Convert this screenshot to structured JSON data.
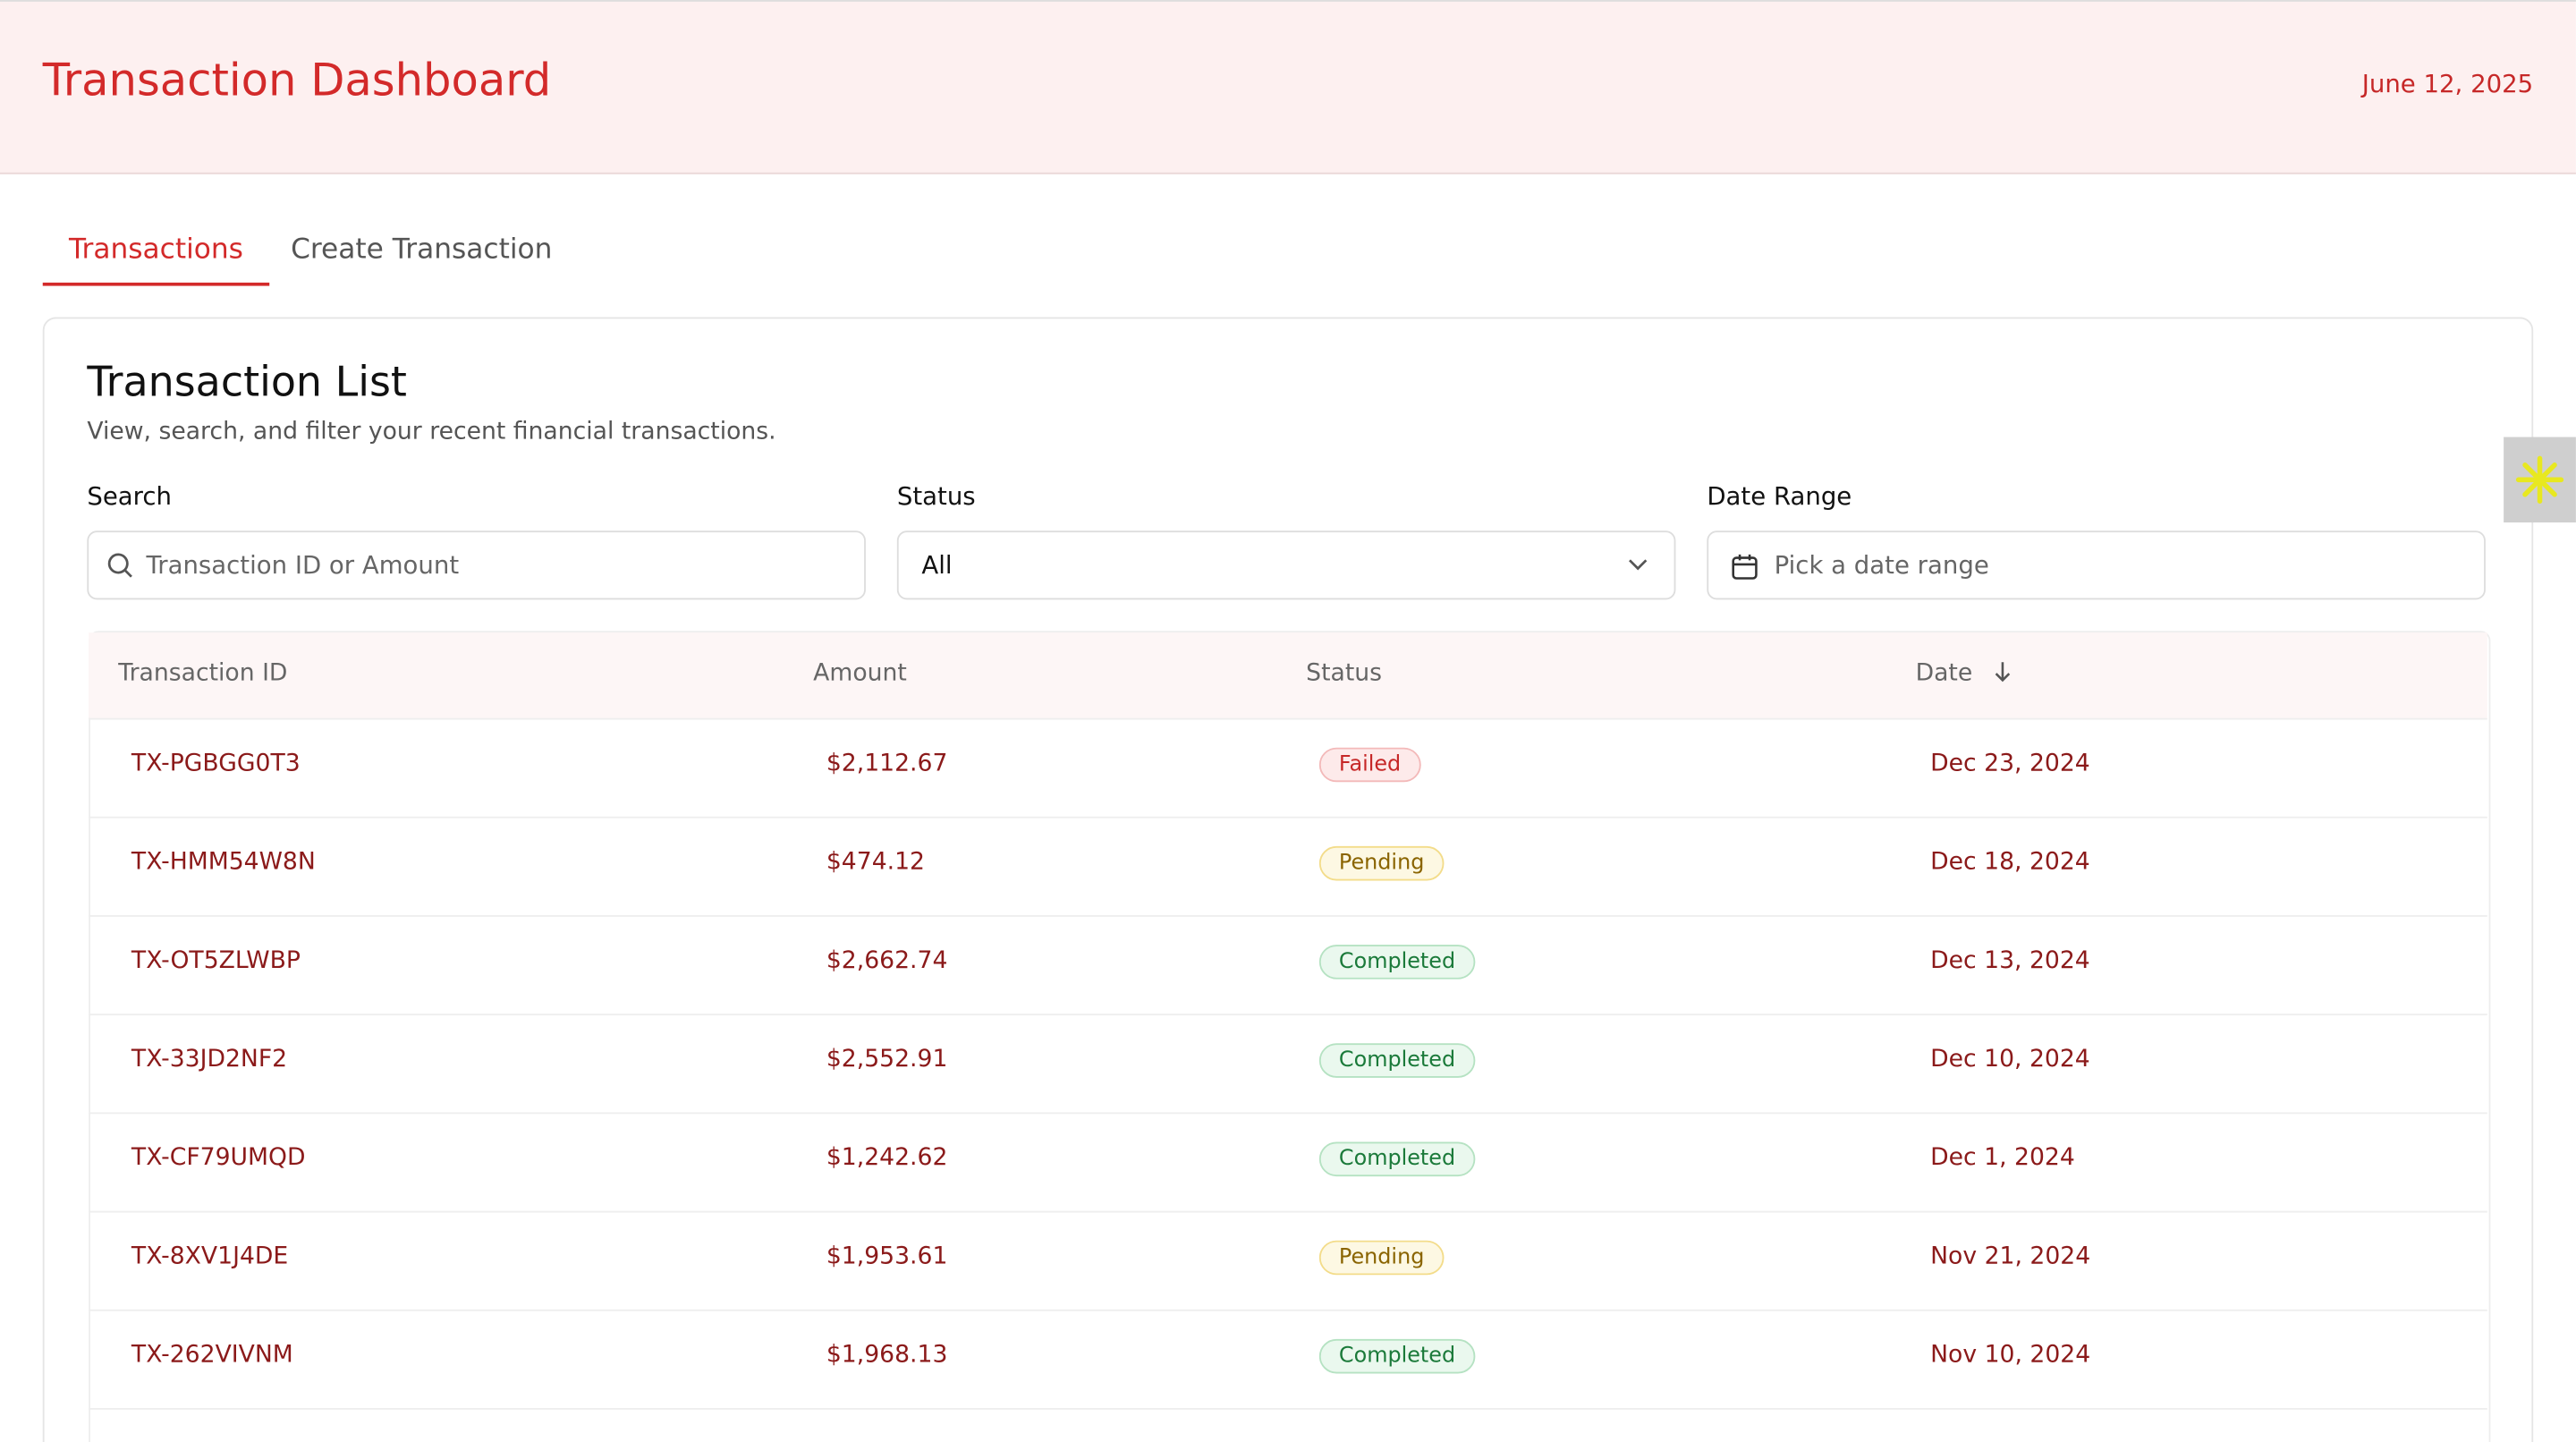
{
  "header": {
    "title": "Transaction Dashboard",
    "date": "June 12, 2025"
  },
  "tabs": [
    "Transactions",
    "Create Transaction"
  ],
  "card": {
    "title": "Transaction List",
    "subtitle": "View, search, and filter your recent financial transactions."
  },
  "filters": {
    "search_label": "Search",
    "search_placeholder": "Transaction ID or Amount",
    "status_label": "Status",
    "status_value": "All",
    "date_label": "Date Range",
    "date_placeholder": "Pick a date range"
  },
  "table": {
    "headers": [
      "Transaction ID",
      "Amount",
      "Status",
      "Date"
    ],
    "rows": [
      [
        "TX-PGBGG0T3",
        "$2,112.67",
        "Failed",
        "Dec 23, 2024"
      ],
      [
        "TX-HMM54W8N",
        "$474.12",
        "Pending",
        "Dec 18, 2024"
      ],
      [
        "TX-OT5ZLWBP",
        "$2,662.74",
        "Completed",
        "Dec 13, 2024"
      ],
      [
        "TX-33JD2NF2",
        "$2,552.91",
        "Completed",
        "Dec 10, 2024"
      ],
      [
        "TX-CF79UMQD",
        "$1,242.62",
        "Completed",
        "Dec 1, 2024"
      ],
      [
        "TX-8XV1J4DE",
        "$1,953.61",
        "Pending",
        "Nov 21, 2024"
      ],
      [
        "TX-262VIVNM",
        "$1,968.13",
        "Completed",
        "Nov 10, 2024"
      ]
    ]
  }
}
